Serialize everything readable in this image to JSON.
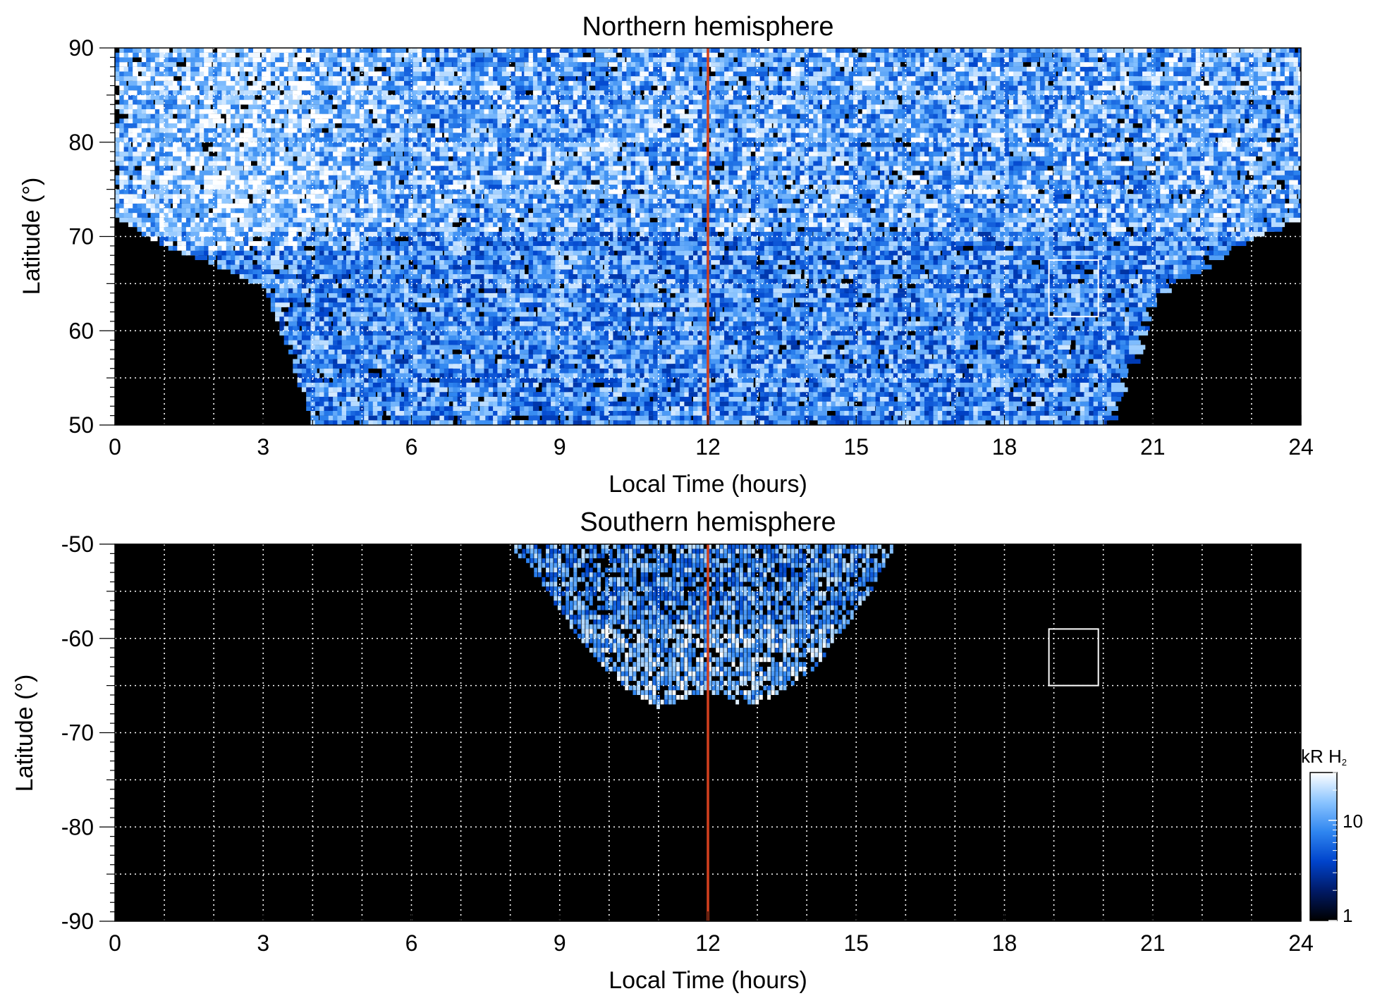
{
  "chart_data": [
    {
      "type": "heatmap",
      "title": "Northern hemisphere",
      "xlabel": "Local Time (hours)",
      "ylabel": "Latitude (°)",
      "xlim": [
        0,
        24
      ],
      "ylim": [
        50,
        90
      ],
      "xticks": [
        0,
        3,
        6,
        9,
        12,
        15,
        18,
        21,
        24
      ],
      "yticks": [
        50,
        60,
        70,
        80,
        90
      ],
      "grid": true,
      "noon_line": {
        "x": 12,
        "color": "#d2401e"
      },
      "box": {
        "x": [
          18.9,
          19.9
        ],
        "y": [
          61.5,
          67.5
        ]
      },
      "coverage": [
        {
          "lt": 0,
          "min_lat": 72.0
        },
        {
          "lt": 1,
          "min_lat": 69.0
        },
        {
          "lt": 2,
          "min_lat": 67.0
        },
        {
          "lt": 3,
          "min_lat": 64.5
        },
        {
          "lt": 3.5,
          "min_lat": 58.0
        },
        {
          "lt": 4,
          "min_lat": 50.0
        },
        {
          "lt": 20,
          "min_lat": 50.0
        },
        {
          "lt": 20.6,
          "min_lat": 58.0
        },
        {
          "lt": 21,
          "min_lat": 63.5
        },
        {
          "lt": 22,
          "min_lat": 67.0
        },
        {
          "lt": 23,
          "min_lat": 70.0
        },
        {
          "lt": 24,
          "min_lat": 72.0
        }
      ]
    },
    {
      "type": "heatmap",
      "title": "Southern hemisphere",
      "xlabel": "Local Time (hours)",
      "ylabel": "Latitude (°)",
      "xlim": [
        0,
        24
      ],
      "ylim": [
        -90,
        -50
      ],
      "xticks": [
        0,
        3,
        6,
        9,
        12,
        15,
        18,
        21,
        24
      ],
      "yticks": [
        -90,
        -80,
        -70,
        -60,
        -50
      ],
      "grid": true,
      "noon_line": {
        "x": 12,
        "color": "#d2401e"
      },
      "box": {
        "x": [
          18.9,
          19.9
        ],
        "y": [
          -65,
          -59
        ]
      },
      "coverage": [
        {
          "lt": 8.0,
          "lat": -50.0
        },
        {
          "lt": 8.6,
          "lat": -54.0
        },
        {
          "lt": 9.2,
          "lat": -58.5
        },
        {
          "lt": 9.8,
          "lat": -62.5
        },
        {
          "lt": 10.4,
          "lat": -65.5
        },
        {
          "lt": 11.0,
          "lat": -67.3
        },
        {
          "lt": 11.6,
          "lat": -66.3
        },
        {
          "lt": 12.0,
          "lat": -65.6
        },
        {
          "lt": 12.4,
          "lat": -66.3
        },
        {
          "lt": 12.8,
          "lat": -67.3
        },
        {
          "lt": 13.4,
          "lat": -66.0
        },
        {
          "lt": 14.1,
          "lat": -63.5
        },
        {
          "lt": 14.7,
          "lat": -59.5
        },
        {
          "lt": 15.3,
          "lat": -55.0
        },
        {
          "lt": 15.8,
          "lat": -50.0
        }
      ]
    }
  ],
  "colorbar": {
    "label": "kR H",
    "label_sub": "2",
    "scale": "log",
    "range": [
      1,
      30
    ],
    "ticks": [
      {
        "value": 10,
        "label": "10"
      },
      {
        "value": 1,
        "label": "1"
      }
    ],
    "colors": [
      "#000000",
      "#001a66",
      "#0044cc",
      "#2f86f0",
      "#8ac4ff",
      "#ffffff"
    ]
  }
}
